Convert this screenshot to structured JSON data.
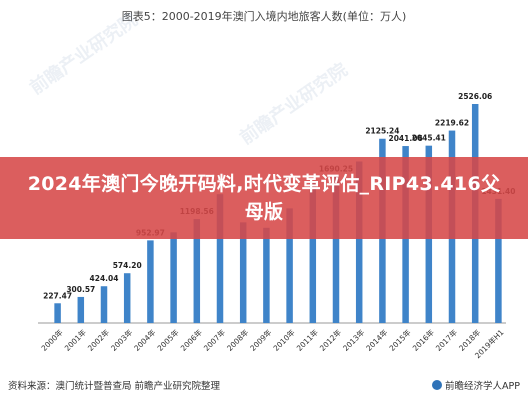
{
  "title": "图表5：2000-2019年澳门入境内地旅客人数(单位：万人)",
  "banner": "2024年澳门今晚开码料,时代变革评估_RIP43.416父母版",
  "source": "资料来源：澳门统计暨普查局 前瞻产业研究院整理",
  "brand": "前瞻经济学人APP",
  "watermark": "前瞻产业研究院",
  "colors": {
    "bar": "#3f84c9",
    "highlight": "#1b61a8",
    "axis": "#999999"
  },
  "chart_data": {
    "type": "bar",
    "categories": [
      "2000年",
      "2001年",
      "2002年",
      "2003年",
      "2004年",
      "2005年",
      "2006年",
      "2007年",
      "2008年",
      "2009年",
      "2010年",
      "2011年",
      "2012年",
      "2013年",
      "2014年",
      "2015年",
      "2016年",
      "2017年",
      "2018年",
      "2019年H1"
    ],
    "values": [
      227.47,
      300.57,
      424.04,
      574.2,
      952.97,
      1046,
      1198.56,
      1486,
      1161,
      1098,
      1322,
      1616,
      1690.25,
      1863,
      2125.24,
      2041.06,
      2045.41,
      2219.62,
      2526.06,
      1431.4
    ],
    "labels": [
      "227.47",
      "300.57",
      "424.04",
      "574.20",
      "952.97",
      "",
      "1198.56",
      "",
      "",
      "",
      "",
      "",
      "1690.25",
      "",
      "2125.24",
      "2041.06",
      "2045.41",
      "2219.62",
      "2526.06",
      "1431.40"
    ],
    "ylim": [
      0,
      2700
    ],
    "grid": false,
    "title": "图表5：2000-2019年澳门入境内地旅客人数(单位：万人)"
  }
}
